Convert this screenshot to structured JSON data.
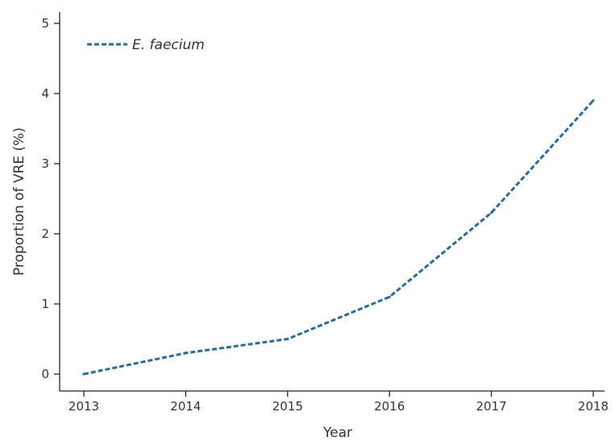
{
  "chart_data": {
    "type": "line",
    "title": "",
    "xlabel": "Year",
    "ylabel": "Proportion of VRE (%)",
    "x": [
      "2013",
      "2014",
      "2015",
      "2016",
      "2017",
      "2018"
    ],
    "series": [
      {
        "name": "E. faecium",
        "values": [
          0.0,
          0.3,
          0.5,
          1.1,
          2.3,
          3.9
        ],
        "color": "#2e6b94",
        "line_style": "dashed"
      }
    ],
    "ylim": [
      0,
      5
    ],
    "yticks": [
      "0",
      "1",
      "2",
      "3",
      "4",
      "5"
    ],
    "grid": false,
    "legend_position": "top-left"
  }
}
